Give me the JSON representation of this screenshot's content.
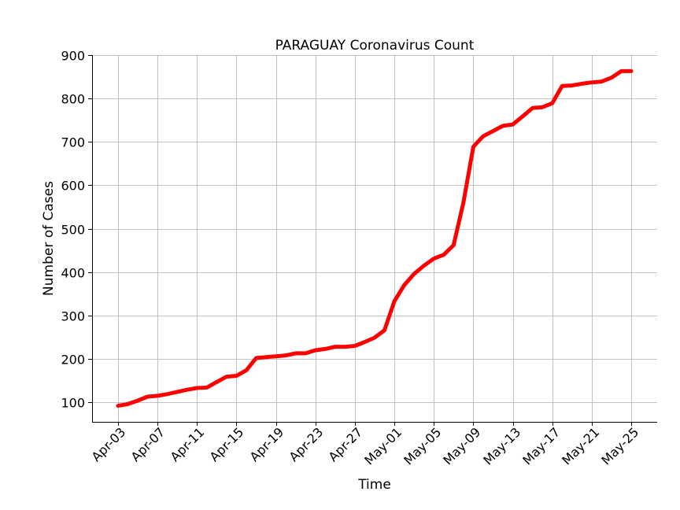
{
  "chart_data": {
    "type": "line",
    "title": "PARAGUAY Coronavirus Count",
    "xlabel": "Time",
    "ylabel": "Number of Cases",
    "x_tick_labels": [
      "Apr-03",
      "Apr-07",
      "Apr-11",
      "Apr-15",
      "Apr-19",
      "Apr-23",
      "Apr-27",
      "May-01",
      "May-05",
      "May-09",
      "May-13",
      "May-17",
      "May-21",
      "May-25"
    ],
    "y_ticks": [
      100,
      200,
      300,
      400,
      500,
      600,
      700,
      800,
      900
    ],
    "xlim": [
      "2020-04-03",
      "2020-05-25"
    ],
    "ylim": [
      55,
      900
    ],
    "grid": true,
    "color": "#ff0000",
    "series": [
      {
        "x": [
          "2020-04-03",
          "2020-04-04",
          "2020-04-05",
          "2020-04-06",
          "2020-04-07",
          "2020-04-08",
          "2020-04-09",
          "2020-04-10",
          "2020-04-11",
          "2020-04-12",
          "2020-04-13",
          "2020-04-14",
          "2020-04-15",
          "2020-04-16",
          "2020-04-17",
          "2020-04-18",
          "2020-04-19",
          "2020-04-20",
          "2020-04-21",
          "2020-04-22",
          "2020-04-23",
          "2020-04-24",
          "2020-04-25",
          "2020-04-26",
          "2020-04-27",
          "2020-04-28",
          "2020-04-29",
          "2020-04-30",
          "2020-05-01",
          "2020-05-02",
          "2020-05-03",
          "2020-05-04",
          "2020-05-05",
          "2020-05-06",
          "2020-05-07",
          "2020-05-08",
          "2020-05-09",
          "2020-05-10",
          "2020-05-11",
          "2020-05-12",
          "2020-05-13",
          "2020-05-14",
          "2020-05-15",
          "2020-05-16",
          "2020-05-17",
          "2020-05-18",
          "2020-05-19",
          "2020-05-20",
          "2020-05-21",
          "2020-05-22",
          "2020-05-23",
          "2020-05-24",
          "2020-05-25"
        ],
        "values": [
          92,
          96,
          104,
          113,
          115,
          119,
          124,
          129,
          133,
          134,
          147,
          159,
          161,
          174,
          202,
          204,
          206,
          208,
          213,
          213,
          220,
          223,
          228,
          228,
          230,
          239,
          249,
          266,
          333,
          370,
          396,
          415,
          431,
          440,
          462,
          560,
          689,
          713,
          725,
          737,
          740,
          759,
          778,
          780,
          789,
          829,
          830,
          834,
          837,
          839,
          848,
          863,
          863
        ]
      }
    ]
  }
}
